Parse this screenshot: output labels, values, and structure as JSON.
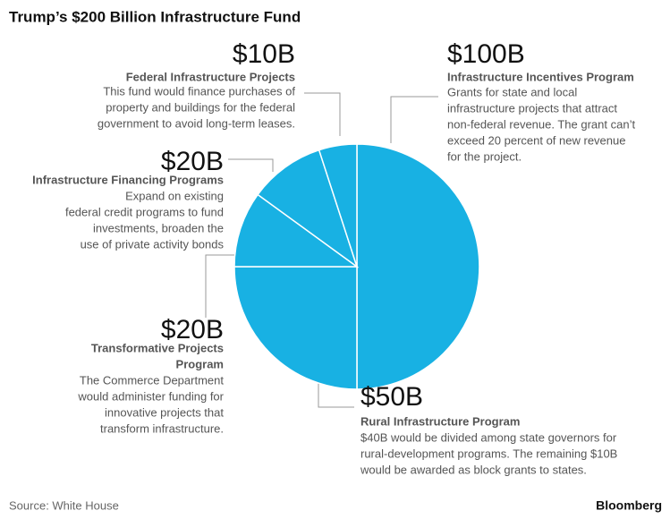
{
  "chart_data": {
    "type": "pie",
    "title": "Trump’s $200 Billion Infrastructure Fund",
    "source": "Source: White House",
    "brand": "Bloomberg",
    "color": "#18b1e3",
    "values": [
      100,
      50,
      20,
      20,
      10
    ],
    "value_labels": [
      "$100B",
      "$50B",
      "$20B",
      "$20B",
      "$10B"
    ],
    "categories": [
      [
        "Infrastructure Incentives Program"
      ],
      [
        "Rural Infrastructure Program"
      ],
      [
        "Transformative Projects",
        "Program"
      ],
      [
        "Infrastructure Financing Programs"
      ],
      [
        "Federal Infrastructure Projects"
      ]
    ],
    "descriptions": [
      [
        "Grants for state and local",
        "infrastructure projects that attract",
        "non-federal revenue. The grant can’t",
        "exceed 20 percent of new revenue",
        "for the project."
      ],
      [
        "$40B would be divided among state governors for",
        "rural-development programs. The remaining $10B",
        "would be awarded as block grants to states."
      ],
      [
        "The Commerce Department",
        "would administer funding for",
        "innovative projects that",
        "transform infrastructure."
      ],
      [
        "Expand on existing",
        "federal credit programs to fund",
        "investments, broaden the",
        "use of private activity bonds"
      ],
      [
        "This fund would finance purchases of",
        "property and buildings for the federal",
        "government to avoid long-term leases."
      ]
    ]
  }
}
